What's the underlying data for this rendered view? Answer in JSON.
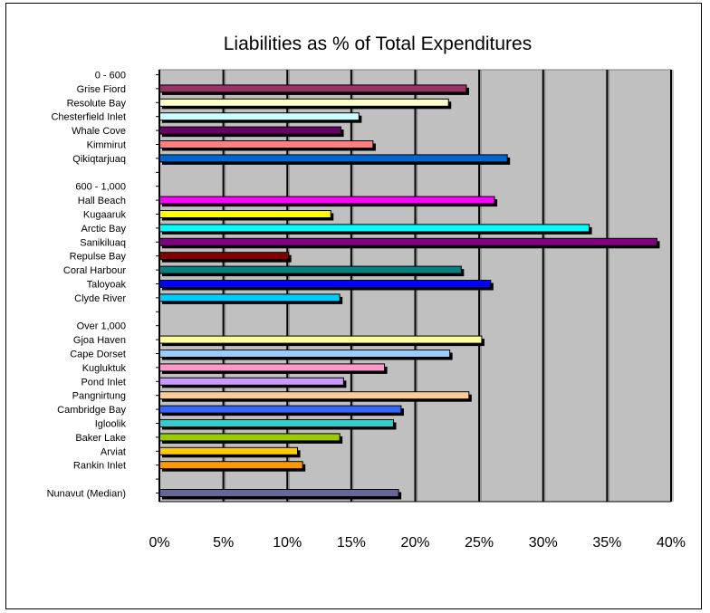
{
  "chart_data": {
    "type": "bar",
    "orientation": "horizontal",
    "title": "Liabilities as % of Total Expenditures",
    "xlabel": "",
    "ylabel": "",
    "xlim": [
      0,
      0.4
    ],
    "x_ticks": [
      "0%",
      "5%",
      "10%",
      "15%",
      "20%",
      "25%",
      "30%",
      "35%",
      "40%"
    ],
    "grid": "vertical gridlines at 5% intervals",
    "legend": "none",
    "rows": [
      {
        "label": "0 - 600",
        "value": null,
        "color": ""
      },
      {
        "label": "Grise Fiord",
        "value": 0.24,
        "color": "#993366"
      },
      {
        "label": "Resolute Bay",
        "value": 0.226,
        "color": "#ffffcc"
      },
      {
        "label": "Chesterfield  Inlet",
        "value": 0.156,
        "color": "#ccffff"
      },
      {
        "label": "Whale Cove",
        "value": 0.142,
        "color": "#660066"
      },
      {
        "label": "Kimmirut",
        "value": 0.167,
        "color": "#ff8080"
      },
      {
        "label": "Qikiqtarjuaq",
        "value": 0.272,
        "color": "#0066cc"
      },
      {
        "label": "",
        "value": null,
        "color": ""
      },
      {
        "label": "600 - 1,000",
        "value": null,
        "color": ""
      },
      {
        "label": "Hall Beach",
        "value": 0.262,
        "color": "#ff00ff"
      },
      {
        "label": "Kugaaruk",
        "value": 0.134,
        "color": "#ffff00"
      },
      {
        "label": "Arctic Bay",
        "value": 0.336,
        "color": "#00ffff"
      },
      {
        "label": "Sanikiluaq",
        "value": 0.389,
        "color": "#800080"
      },
      {
        "label": "Repulse Bay",
        "value": 0.101,
        "color": "#800000"
      },
      {
        "label": "Coral Harbour",
        "value": 0.236,
        "color": "#008080"
      },
      {
        "label": "Taloyoak",
        "value": 0.259,
        "color": "#0000ff"
      },
      {
        "label": "Clyde River",
        "value": 0.141,
        "color": "#00ccff"
      },
      {
        "label": "",
        "value": null,
        "color": ""
      },
      {
        "label": "Over 1,000",
        "value": null,
        "color": ""
      },
      {
        "label": "Gjoa Haven",
        "value": 0.252,
        "color": "#ffff99"
      },
      {
        "label": "Cape Dorset",
        "value": 0.227,
        "color": "#99ccff"
      },
      {
        "label": "Kugluktuk",
        "value": 0.176,
        "color": "#ff99cc"
      },
      {
        "label": "Pond Inlet",
        "value": 0.144,
        "color": "#cc99ff"
      },
      {
        "label": "Pangnirtung",
        "value": 0.242,
        "color": "#ffcc99"
      },
      {
        "label": "Cambridge  Bay",
        "value": 0.189,
        "color": "#3366ff"
      },
      {
        "label": "Igloolik",
        "value": 0.183,
        "color": "#33cccc"
      },
      {
        "label": "Baker Lake",
        "value": 0.141,
        "color": "#99cc00"
      },
      {
        "label": "Arviat",
        "value": 0.108,
        "color": "#ffcc00"
      },
      {
        "label": "Rankin Inlet",
        "value": 0.112,
        "color": "#ff9900"
      },
      {
        "label": "",
        "value": null,
        "color": ""
      },
      {
        "label": "Nunavut (Median)",
        "value": 0.187,
        "color": "#666699"
      }
    ]
  }
}
